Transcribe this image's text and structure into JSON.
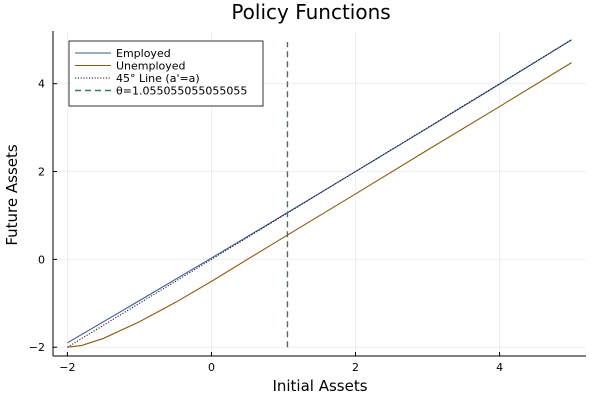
{
  "chart_data": {
    "type": "line",
    "title": "Policy Functions",
    "xlabel": "Initial Assets",
    "ylabel": "Future Assets",
    "xlim": [
      -2.2,
      5.2
    ],
    "ylim": [
      -2.2,
      5.2
    ],
    "xticks": [
      -2,
      0,
      2,
      4
    ],
    "yticks": [
      -2,
      0,
      2,
      4
    ],
    "xtick_labels": [
      "−2",
      "0",
      "2",
      "4"
    ],
    "ytick_labels": [
      "−2",
      "0",
      "2",
      "4"
    ],
    "grid": true,
    "legend_position": "top-left",
    "series": [
      {
        "name": "Employed",
        "color": "#3d5a99",
        "style": "solid",
        "x": [
          -2,
          -1,
          0,
          1,
          2,
          3,
          4,
          5
        ],
        "y": [
          -1.9,
          -0.94,
          0.03,
          1.01,
          2.0,
          2.99,
          3.99,
          5.0
        ]
      },
      {
        "name": "Unemployed",
        "color": "#8b5a12",
        "style": "solid",
        "x": [
          -2,
          -1.8,
          -1.5,
          -1,
          -0.5,
          0,
          1,
          2,
          3,
          4,
          5
        ],
        "y": [
          -2.0,
          -1.96,
          -1.8,
          -1.42,
          -0.98,
          -0.5,
          0.5,
          1.49,
          2.49,
          3.48,
          4.48
        ]
      },
      {
        "name": "45° Line (a'=a)",
        "color": "#111111",
        "style": "dotted",
        "x": [
          -2,
          5
        ],
        "y": [
          -2,
          5
        ]
      }
    ],
    "vline": {
      "name": "θ=1.055055055055055",
      "x": 1.055055055055055,
      "y_range": [
        -2,
        4.95
      ],
      "color": "#3a7a5a",
      "style": "dashed"
    }
  }
}
